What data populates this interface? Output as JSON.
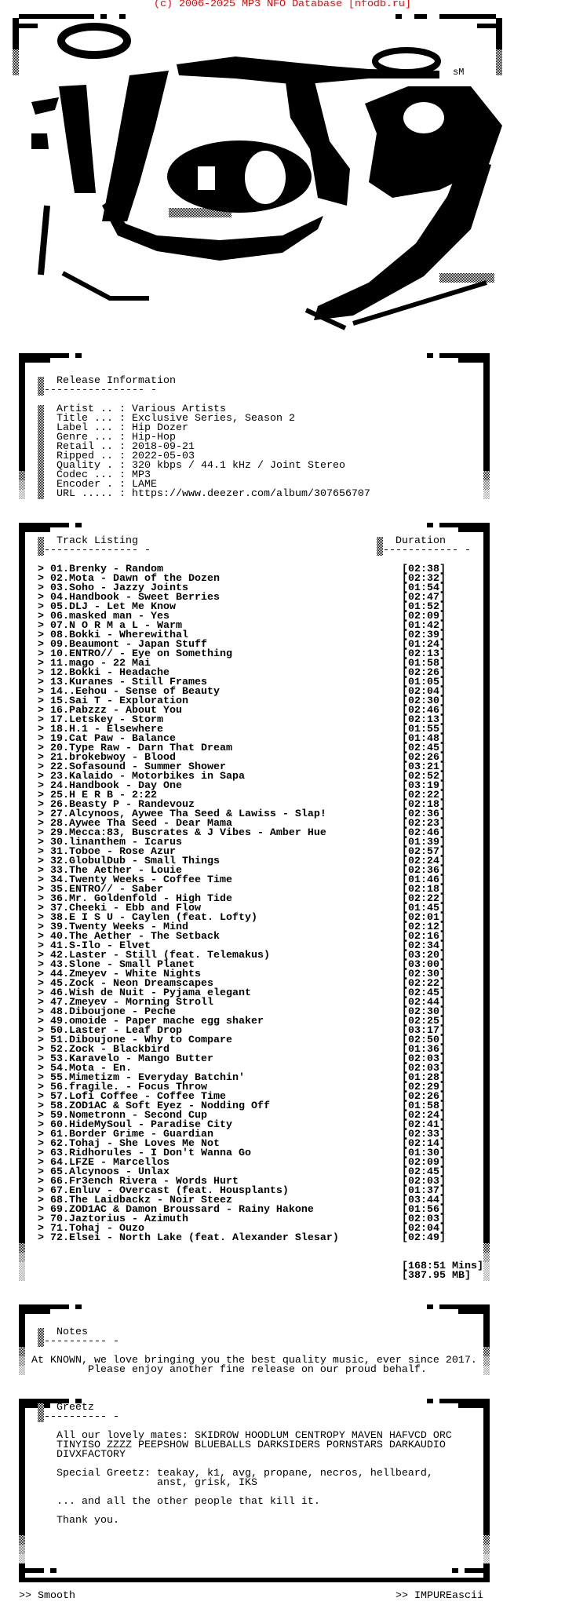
{
  "header": {
    "copyright": "(c) 2006-2025 MP3 NFO Database [nfodb.ru]",
    "color": "#ff0000"
  },
  "art": {
    "signature": "sM"
  },
  "release": {
    "title": "Release Information",
    "underline": "---------------- -",
    "separator": ":",
    "fields": [
      {
        "label": "Artist ..",
        "value": "Various Artists"
      },
      {
        "label": "Title ...",
        "value": "Exclusive Series, Season 2"
      },
      {
        "label": "Label ...",
        "value": "Hip Dozer"
      },
      {
        "label": "Genre ...",
        "value": "Hip-Hop"
      },
      {
        "label": "Retail ..",
        "value": "2018-09-21"
      },
      {
        "label": "Ripped ..",
        "value": "2022-05-03"
      },
      {
        "label": "Quality .",
        "value": "320 kbps / 44.1 kHz / Joint Stereo"
      },
      {
        "label": "Codec ...",
        "value": "MP3"
      },
      {
        "label": "Encoder .",
        "value": "LAME"
      },
      {
        "label": "URL .....",
        "value": "https://www.deezer.com/album/307656707"
      }
    ]
  },
  "tracklist": {
    "title": "Track Listing",
    "title_underline": "--------------- -",
    "duration_title": "Duration",
    "duration_underline": "------------ -",
    "bullet": ">",
    "tracks": [
      {
        "no": "01",
        "title": "Brenky - Random",
        "duration": "[02:38]"
      },
      {
        "no": "02",
        "title": "Mota - Dawn of the Dozen",
        "duration": "[02:32]"
      },
      {
        "no": "03",
        "title": "Soho - Jazzy Joints",
        "duration": "[01:54]"
      },
      {
        "no": "04",
        "title": "Handbook - Sweet Berries",
        "duration": "[02:47]"
      },
      {
        "no": "05",
        "title": "DLJ - Let Me Know",
        "duration": "[01:52]"
      },
      {
        "no": "06",
        "title": "masked man - Yes",
        "duration": "[02:09]"
      },
      {
        "no": "07",
        "title": "N O R M a L - Warm",
        "duration": "[01:42]"
      },
      {
        "no": "08",
        "title": "Bokki - Wherewithal",
        "duration": "[02:39]"
      },
      {
        "no": "09",
        "title": "Beaumont - Japan Stuff",
        "duration": "[01:24]"
      },
      {
        "no": "10",
        "title": "ENTRO// - Eye on Something",
        "duration": "[02:13]"
      },
      {
        "no": "11",
        "title": "mago - 22 Mai",
        "duration": "[01:58]"
      },
      {
        "no": "12",
        "title": "Bokki - Headache",
        "duration": "[02:26]"
      },
      {
        "no": "13",
        "title": "Kuranes - Still Frames",
        "duration": "[01:05]"
      },
      {
        "no": "14",
        "title": ".Eehou - Sense of Beauty",
        "duration": "[02:04]"
      },
      {
        "no": "15",
        "title": "Sai T - Exploration",
        "duration": "[02:30]"
      },
      {
        "no": "16",
        "title": "Pabzzz - About You",
        "duration": "[02:46]"
      },
      {
        "no": "17",
        "title": "Letskey - Storm",
        "duration": "[02:13]"
      },
      {
        "no": "18",
        "title": "H.1 - Elsewhere",
        "duration": "[01:55]"
      },
      {
        "no": "19",
        "title": "Cat Paw - Balance",
        "duration": "[01:48]"
      },
      {
        "no": "20",
        "title": "Type Raw - Darn That Dream",
        "duration": "[02:45]"
      },
      {
        "no": "21",
        "title": "brokebwoy - Blood",
        "duration": "[02:26]"
      },
      {
        "no": "22",
        "title": "Sofasound - Summer Shower",
        "duration": "[03:21]"
      },
      {
        "no": "23",
        "title": "Kalaido - Motorbikes in Sapa",
        "duration": "[02:52]"
      },
      {
        "no": "24",
        "title": "Handbook - Day One",
        "duration": "[03:19]"
      },
      {
        "no": "25",
        "title": "H E R B - 2:22",
        "duration": "[02:22]"
      },
      {
        "no": "26",
        "title": "Beasty P - Randevouz",
        "duration": "[02:18]"
      },
      {
        "no": "27",
        "title": "Alcynoos, Aywee Tha Seed & Lawiss - Slap!",
        "duration": "[02:36]"
      },
      {
        "no": "28",
        "title": "Aywee Tha Seed - Dear Mama",
        "duration": "[02:23]"
      },
      {
        "no": "29",
        "title": "Mecca:83, Buscrates & J Vibes - Amber Hue",
        "duration": "[02:46]"
      },
      {
        "no": "30",
        "title": "linanthem - Icarus",
        "duration": "[01:39]"
      },
      {
        "no": "31",
        "title": "Toboe - Rose Azur",
        "duration": "[02:57]"
      },
      {
        "no": "32",
        "title": "GlobulDub - Small Things",
        "duration": "[02:24]"
      },
      {
        "no": "33",
        "title": "The Aether - Louie",
        "duration": "[02:36]"
      },
      {
        "no": "34",
        "title": "Twenty Weeks - Coffee Time",
        "duration": "[01:46]"
      },
      {
        "no": "35",
        "title": "ENTRO// - Saber",
        "duration": "[02:18]"
      },
      {
        "no": "36",
        "title": "Mr. Goldenfold - High Tide",
        "duration": "[02:22]"
      },
      {
        "no": "37",
        "title": "Cheeki - Ebb and Flow",
        "duration": "[01:45]"
      },
      {
        "no": "38",
        "title": "E I S U - Caylen (feat. Lofty)",
        "duration": "[02:01]"
      },
      {
        "no": "39",
        "title": "Twenty Weeks - Mind",
        "duration": "[02:12]"
      },
      {
        "no": "40",
        "title": "The Aether - The Setback",
        "duration": "[02:16]"
      },
      {
        "no": "41",
        "title": "S-Ilo - Elvet",
        "duration": "[02:34]"
      },
      {
        "no": "42",
        "title": "Laster - Still (feat. Telemakus)",
        "duration": "[03:20]"
      },
      {
        "no": "43",
        "title": "Slone - Small Planet",
        "duration": "[03:00]"
      },
      {
        "no": "44",
        "title": "Zmeyev - White Nights",
        "duration": "[02:30]"
      },
      {
        "no": "45",
        "title": "Zock - Neon Dreamscapes",
        "duration": "[02:22]"
      },
      {
        "no": "46",
        "title": "Wish de Nuit - Pyjama elegant",
        "duration": "[02:45]"
      },
      {
        "no": "47",
        "title": "Zmeyev - Morning Stroll",
        "duration": "[02:44]"
      },
      {
        "no": "48",
        "title": "Diboujone - Peche",
        "duration": "[02:30]"
      },
      {
        "no": "49",
        "title": "omoide - Paper mache egg shaker",
        "duration": "[02:25]"
      },
      {
        "no": "50",
        "title": "Laster - Leaf Drop",
        "duration": "[03:17]"
      },
      {
        "no": "51",
        "title": "Diboujone - Why to Compare",
        "duration": "[02:50]"
      },
      {
        "no": "52",
        "title": "Zock - Blackbird",
        "duration": "[01:36]"
      },
      {
        "no": "53",
        "title": "Karavelo - Mango Butter",
        "duration": "[02:03]"
      },
      {
        "no": "54",
        "title": "Mota - En.",
        "duration": "[02:03]"
      },
      {
        "no": "55",
        "title": "Mimetizm - Everyday Batchin'",
        "duration": "[01:28]"
      },
      {
        "no": "56",
        "title": "fragile. - Focus Throw",
        "duration": "[02:29]"
      },
      {
        "no": "57",
        "title": "Lofi Coffee - Coffee Time",
        "duration": "[02:26]"
      },
      {
        "no": "58",
        "title": "ZOD1AC & Soft Eyez - Nodding Off",
        "duration": "[01:58]"
      },
      {
        "no": "59",
        "title": "Nometronn - Second Cup",
        "duration": "[02:24]"
      },
      {
        "no": "60",
        "title": "HideMySoul - Paradise City",
        "duration": "[02:41]"
      },
      {
        "no": "61",
        "title": "Border Grime - Guardian",
        "duration": "[02:33]"
      },
      {
        "no": "62",
        "title": "Tohaj - She Loves Me Not",
        "duration": "[02:14]"
      },
      {
        "no": "63",
        "title": "Ridhorules - I Don't Wanna Go",
        "duration": "[01:30]"
      },
      {
        "no": "64",
        "title": "LFZE - Marcellos",
        "duration": "[02:09]"
      },
      {
        "no": "65",
        "title": "Alcynoos - Unlax",
        "duration": "[02:45]"
      },
      {
        "no": "66",
        "title": "Fr3ench Rivera - Words Hurt",
        "duration": "[02:03]"
      },
      {
        "no": "67",
        "title": "Enluv - Overcast (feat. Housplants)",
        "duration": "[01:37]"
      },
      {
        "no": "68",
        "title": "The Laidbackz - Noir Steez",
        "duration": "[03:44]"
      },
      {
        "no": "69",
        "title": "ZOD1AC & Damon Broussard - Rainy Hakone",
        "duration": "[01:56]"
      },
      {
        "no": "70",
        "title": "Jaztorius - Azimuth",
        "duration": "[02:03]"
      },
      {
        "no": "71",
        "title": "Tohaj - Ouzo",
        "duration": "[02:04]"
      },
      {
        "no": "72",
        "title": "Elsei - North Lake (feat. Alexander Slesar)",
        "duration": "[02:49]"
      }
    ],
    "total_time": "[168:51 Mins]",
    "total_size": "[387.95 MB]"
  },
  "notes": {
    "title": "Notes",
    "underline": "---------- -",
    "lines": [
      "At KNOWN, we love bringing you the best quality music, ever since 2017.",
      "Please enjoy another fine release on our proud behalf."
    ]
  },
  "greetz": {
    "title": "Greetz",
    "underline": "---------- -",
    "mates": [
      "All our lovely mates: SKIDROW HOODLUM CENTROPY MAVEN HAFVCD ORC",
      "TINYISO ZZZZ PEEPSHOW BLUEBALLS DARKSIDERS PORNSTARS DARKAUDIO",
      "DIVXFACTORY"
    ],
    "special": [
      "Special Greetz: teakay, k1, avg, propane, necros, hellbeard,",
      "                anst, grisk, IKS"
    ],
    "others": "... and all the other people that kill it.",
    "thanks": "Thank you."
  },
  "footer": {
    "left": ">> Smooth",
    "right": ">> IMPUREascii"
  }
}
